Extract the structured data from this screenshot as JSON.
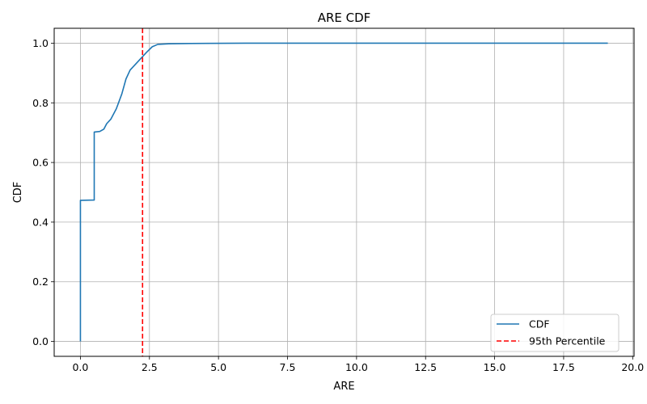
{
  "chart_data": {
    "type": "line",
    "title": "ARE CDF",
    "xlabel": "ARE",
    "ylabel": "CDF",
    "xlim": [
      -0.95,
      20.05
    ],
    "ylim": [
      -0.05,
      1.05
    ],
    "xticks": [
      0.0,
      2.5,
      5.0,
      7.5,
      10.0,
      12.5,
      15.0,
      17.5,
      20.0
    ],
    "xtick_labels": [
      "0.0",
      "2.5",
      "5.0",
      "7.5",
      "10.0",
      "12.5",
      "15.0",
      "17.5",
      "20.0"
    ],
    "yticks": [
      0.0,
      0.2,
      0.4,
      0.6,
      0.8,
      1.0
    ],
    "ytick_labels": [
      "0.0",
      "0.2",
      "0.4",
      "0.6",
      "0.8",
      "1.0"
    ],
    "grid": true,
    "legend_position": "lower-right",
    "series": [
      {
        "name": "CDF",
        "color": "#1f77b4",
        "style": "solid",
        "x": [
          0.0,
          0.0,
          0.5,
          0.5,
          0.7,
          0.85,
          0.95,
          1.1,
          1.3,
          1.5,
          1.65,
          1.8,
          2.0,
          2.2,
          2.4,
          2.6,
          2.8,
          3.2,
          4.0,
          6.0,
          10.0,
          15.0,
          19.1
        ],
        "y": [
          0.0,
          0.473,
          0.474,
          0.702,
          0.704,
          0.712,
          0.73,
          0.745,
          0.78,
          0.83,
          0.88,
          0.91,
          0.93,
          0.95,
          0.97,
          0.988,
          0.996,
          0.998,
          0.999,
          1.0,
          1.0,
          1.0,
          1.0
        ]
      },
      {
        "name": "95th Percentile",
        "color": "#ff0000",
        "style": "dashed",
        "vline_x": 2.25
      }
    ]
  }
}
